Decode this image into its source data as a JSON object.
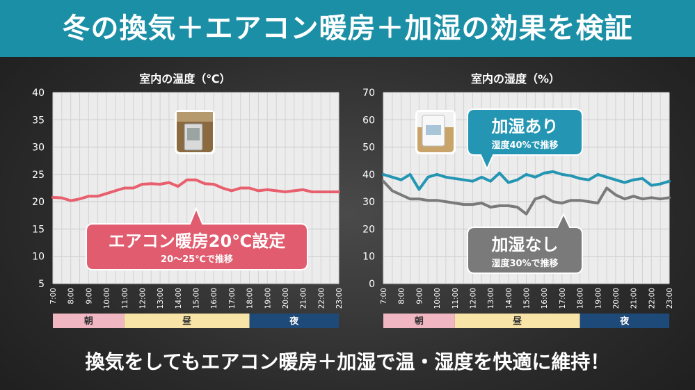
{
  "header": {
    "title": "冬の換気＋エアコン暖房＋加湿の効果を検証"
  },
  "footer": {
    "text": "換気をしてもエアコン暖房＋加湿で温・湿度を快適に維持！"
  },
  "colors": {
    "banner": "#1b8fa6",
    "temp_line": "#e8606e",
    "humid_line": "#2496b3",
    "nohumid_line": "#7a7a7a",
    "morning": "#f0b6c2",
    "day": "#f8e4a6",
    "night": "#1e4a7a"
  },
  "periods": [
    {
      "label": "朝",
      "from": "7:00",
      "to": "11:00"
    },
    {
      "label": "昼",
      "from": "11:00",
      "to": "18:00"
    },
    {
      "label": "夜",
      "from": "18:00",
      "to": "23:00"
    }
  ],
  "callouts": {
    "temp": {
      "title": "エアコン暖房20℃設定",
      "sub": "20～25℃で推移"
    },
    "humid_on": {
      "title": "加湿あり",
      "sub": "湿度40%で推移"
    },
    "humid_off": {
      "title": "加湿なし",
      "sub": "湿度30%で推移"
    }
  },
  "icons": {
    "temp_photo": "thermometer-photo-icon",
    "humid_photo": "humidifier-photo-icon"
  },
  "chart_data": [
    {
      "type": "line",
      "title": "室内の温度（℃）",
      "ylim": [
        5,
        40
      ],
      "yticks": [
        5,
        10,
        15,
        20,
        25,
        30,
        35,
        40
      ],
      "grid": true,
      "x_ticks": [
        "7:00",
        "8:00",
        "9:00",
        "10:00",
        "11:00",
        "12:00",
        "13:00",
        "14:00",
        "15:00",
        "16:00",
        "17:00",
        "18:00",
        "19:00",
        "20:00",
        "21:00",
        "22:00",
        "23:00"
      ],
      "x_hours": [
        7,
        7.5,
        8,
        8.5,
        9,
        9.5,
        10,
        10.5,
        11,
        11.5,
        12,
        12.5,
        13,
        13.5,
        14,
        14.5,
        15,
        15.5,
        16,
        16.5,
        17,
        17.5,
        18,
        18.5,
        19,
        19.5,
        20,
        20.5,
        21,
        21.5,
        22,
        22.5,
        23
      ],
      "series": [
        {
          "values": [
            20.8,
            20.7,
            20.2,
            20.5,
            21.0,
            21.0,
            21.5,
            22.0,
            22.5,
            22.5,
            23.2,
            23.3,
            23.2,
            23.5,
            22.8,
            24.0,
            24.0,
            23.3,
            23.2,
            22.5,
            22.0,
            22.5,
            22.5,
            22.0,
            22.2,
            22.0,
            21.8,
            22.0,
            22.2,
            21.8,
            21.8,
            21.8,
            21.8
          ]
        }
      ]
    },
    {
      "type": "line",
      "title": "室内の湿度（%）",
      "ylim": [
        0,
        70
      ],
      "yticks": [
        0,
        10,
        20,
        30,
        40,
        50,
        60,
        70
      ],
      "grid": true,
      "x_ticks": [
        "7:00",
        "8:00",
        "9:00",
        "10:00",
        "11:00",
        "12:00",
        "13:00",
        "14:00",
        "15:00",
        "16:00",
        "17:00",
        "18:00",
        "19:00",
        "20:00",
        "21:00",
        "22:00",
        "23:00"
      ],
      "x_hours": [
        7,
        7.5,
        8,
        8.5,
        9,
        9.5,
        10,
        10.5,
        11,
        11.5,
        12,
        12.5,
        13,
        13.5,
        14,
        14.5,
        15,
        15.5,
        16,
        16.5,
        17,
        17.5,
        18,
        18.5,
        19,
        19.5,
        20,
        20.5,
        21,
        21.5,
        22,
        22.5,
        23
      ],
      "series": [
        {
          "values": [
            40.0,
            39.0,
            38.0,
            40.0,
            34.5,
            39.0,
            40.0,
            39.0,
            38.5,
            38.0,
            37.5,
            39.0,
            37.5,
            40.5,
            37.0,
            38.0,
            40.0,
            39.0,
            40.5,
            41.0,
            40.0,
            39.5,
            38.5,
            38.0,
            40.0,
            39.0,
            38.0,
            37.0,
            38.0,
            38.5,
            36.0,
            36.5,
            37.5
          ]
        },
        {
          "values": [
            37.5,
            34.0,
            32.5,
            31.0,
            31.0,
            30.5,
            30.5,
            30.0,
            29.5,
            29.0,
            29.0,
            29.5,
            28.0,
            28.5,
            28.5,
            28.0,
            25.5,
            31.0,
            32.0,
            30.0,
            29.5,
            30.5,
            30.5,
            30.0,
            29.5,
            35.0,
            32.5,
            31.0,
            32.0,
            31.0,
            31.5,
            31.0,
            31.5
          ]
        }
      ]
    }
  ]
}
